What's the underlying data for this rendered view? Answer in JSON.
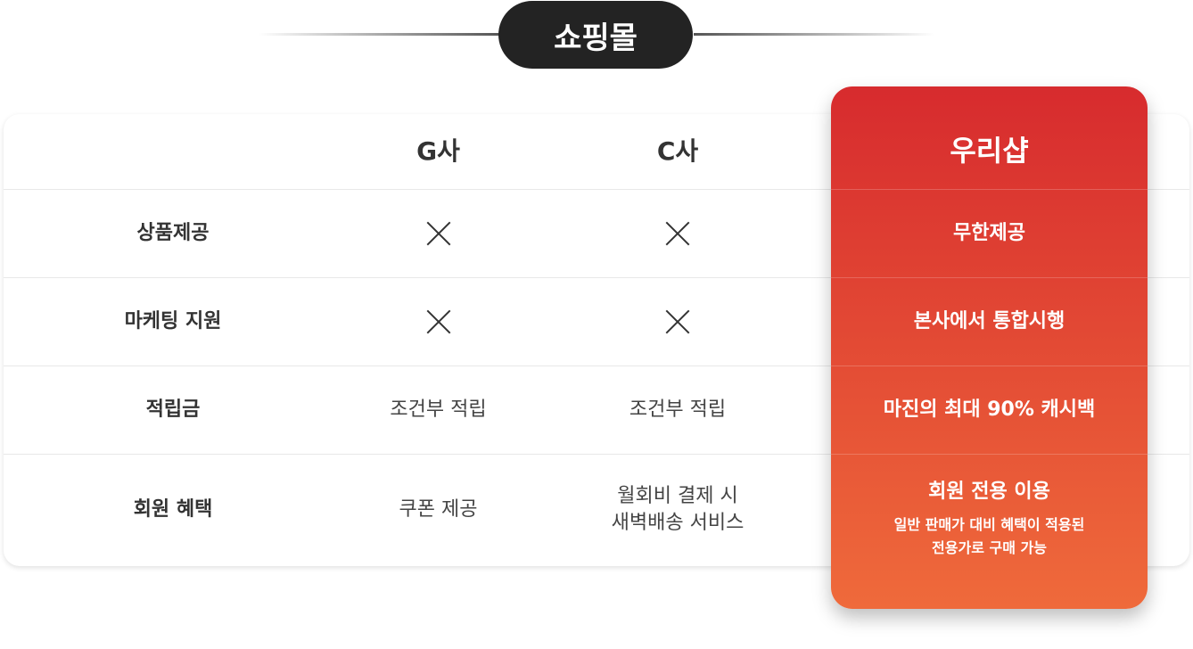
{
  "title": "쇼핑몰",
  "columns": {
    "label": "",
    "g": "G사",
    "c": "C사",
    "ours": "우리샵"
  },
  "rows": [
    {
      "label": "상품제공",
      "g": "x-icon",
      "c": "x-icon",
      "ours": "무한제공"
    },
    {
      "label": "마케팅 지원",
      "g": "x-icon",
      "c": "x-icon",
      "ours": "본사에서 통합시행"
    },
    {
      "label": "적립금",
      "g": "조건부 적립",
      "c": "조건부 적립",
      "ours": "마진의 최대 90% 캐시백"
    },
    {
      "label": "회원 혜택",
      "g": "쿠폰 제공",
      "c_line1": "월회비 결제 시",
      "c_line2": "새벽배송 서비스",
      "ours": "회원 전용 이용",
      "ours_sub1": "일반 판매가 대비 혜택이 적용된",
      "ours_sub2": "전용가로 구매 가능"
    }
  ],
  "colors": {
    "pill": "#232323",
    "ours_top": "#d72b2e",
    "ours_bottom": "#ef6a3b"
  }
}
